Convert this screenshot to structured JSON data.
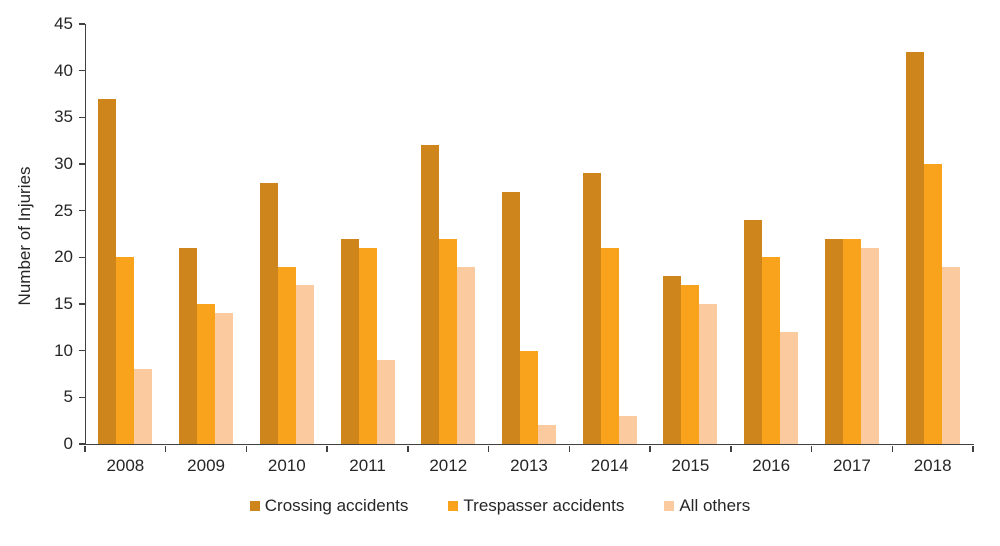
{
  "chart_data": {
    "type": "bar",
    "title": "",
    "xlabel": "",
    "ylabel": "Number of Injuries",
    "ylim": [
      0,
      45
    ],
    "ytick_step": 5,
    "grid": false,
    "legend_position": "bottom-center",
    "background_color": "#ffffff",
    "axis_color": "#404040",
    "text_color": "#262626",
    "categories": [
      "2008",
      "2009",
      "2010",
      "2011",
      "2012",
      "2013",
      "2014",
      "2015",
      "2016",
      "2017",
      "2018"
    ],
    "series": [
      {
        "name": "Crossing accidents",
        "color": "#CE861C",
        "values": [
          37,
          21,
          28,
          22,
          32,
          27,
          29,
          18,
          24,
          22,
          42
        ]
      },
      {
        "name": "Trespasser accidents",
        "color": "#F9A21C",
        "values": [
          20,
          15,
          19,
          21,
          22,
          10,
          21,
          17,
          20,
          22,
          30
        ]
      },
      {
        "name": "All others",
        "color": "#FBCA9E",
        "values": [
          8,
          14,
          17,
          9,
          19,
          2,
          3,
          15,
          12,
          21,
          19
        ]
      }
    ]
  }
}
